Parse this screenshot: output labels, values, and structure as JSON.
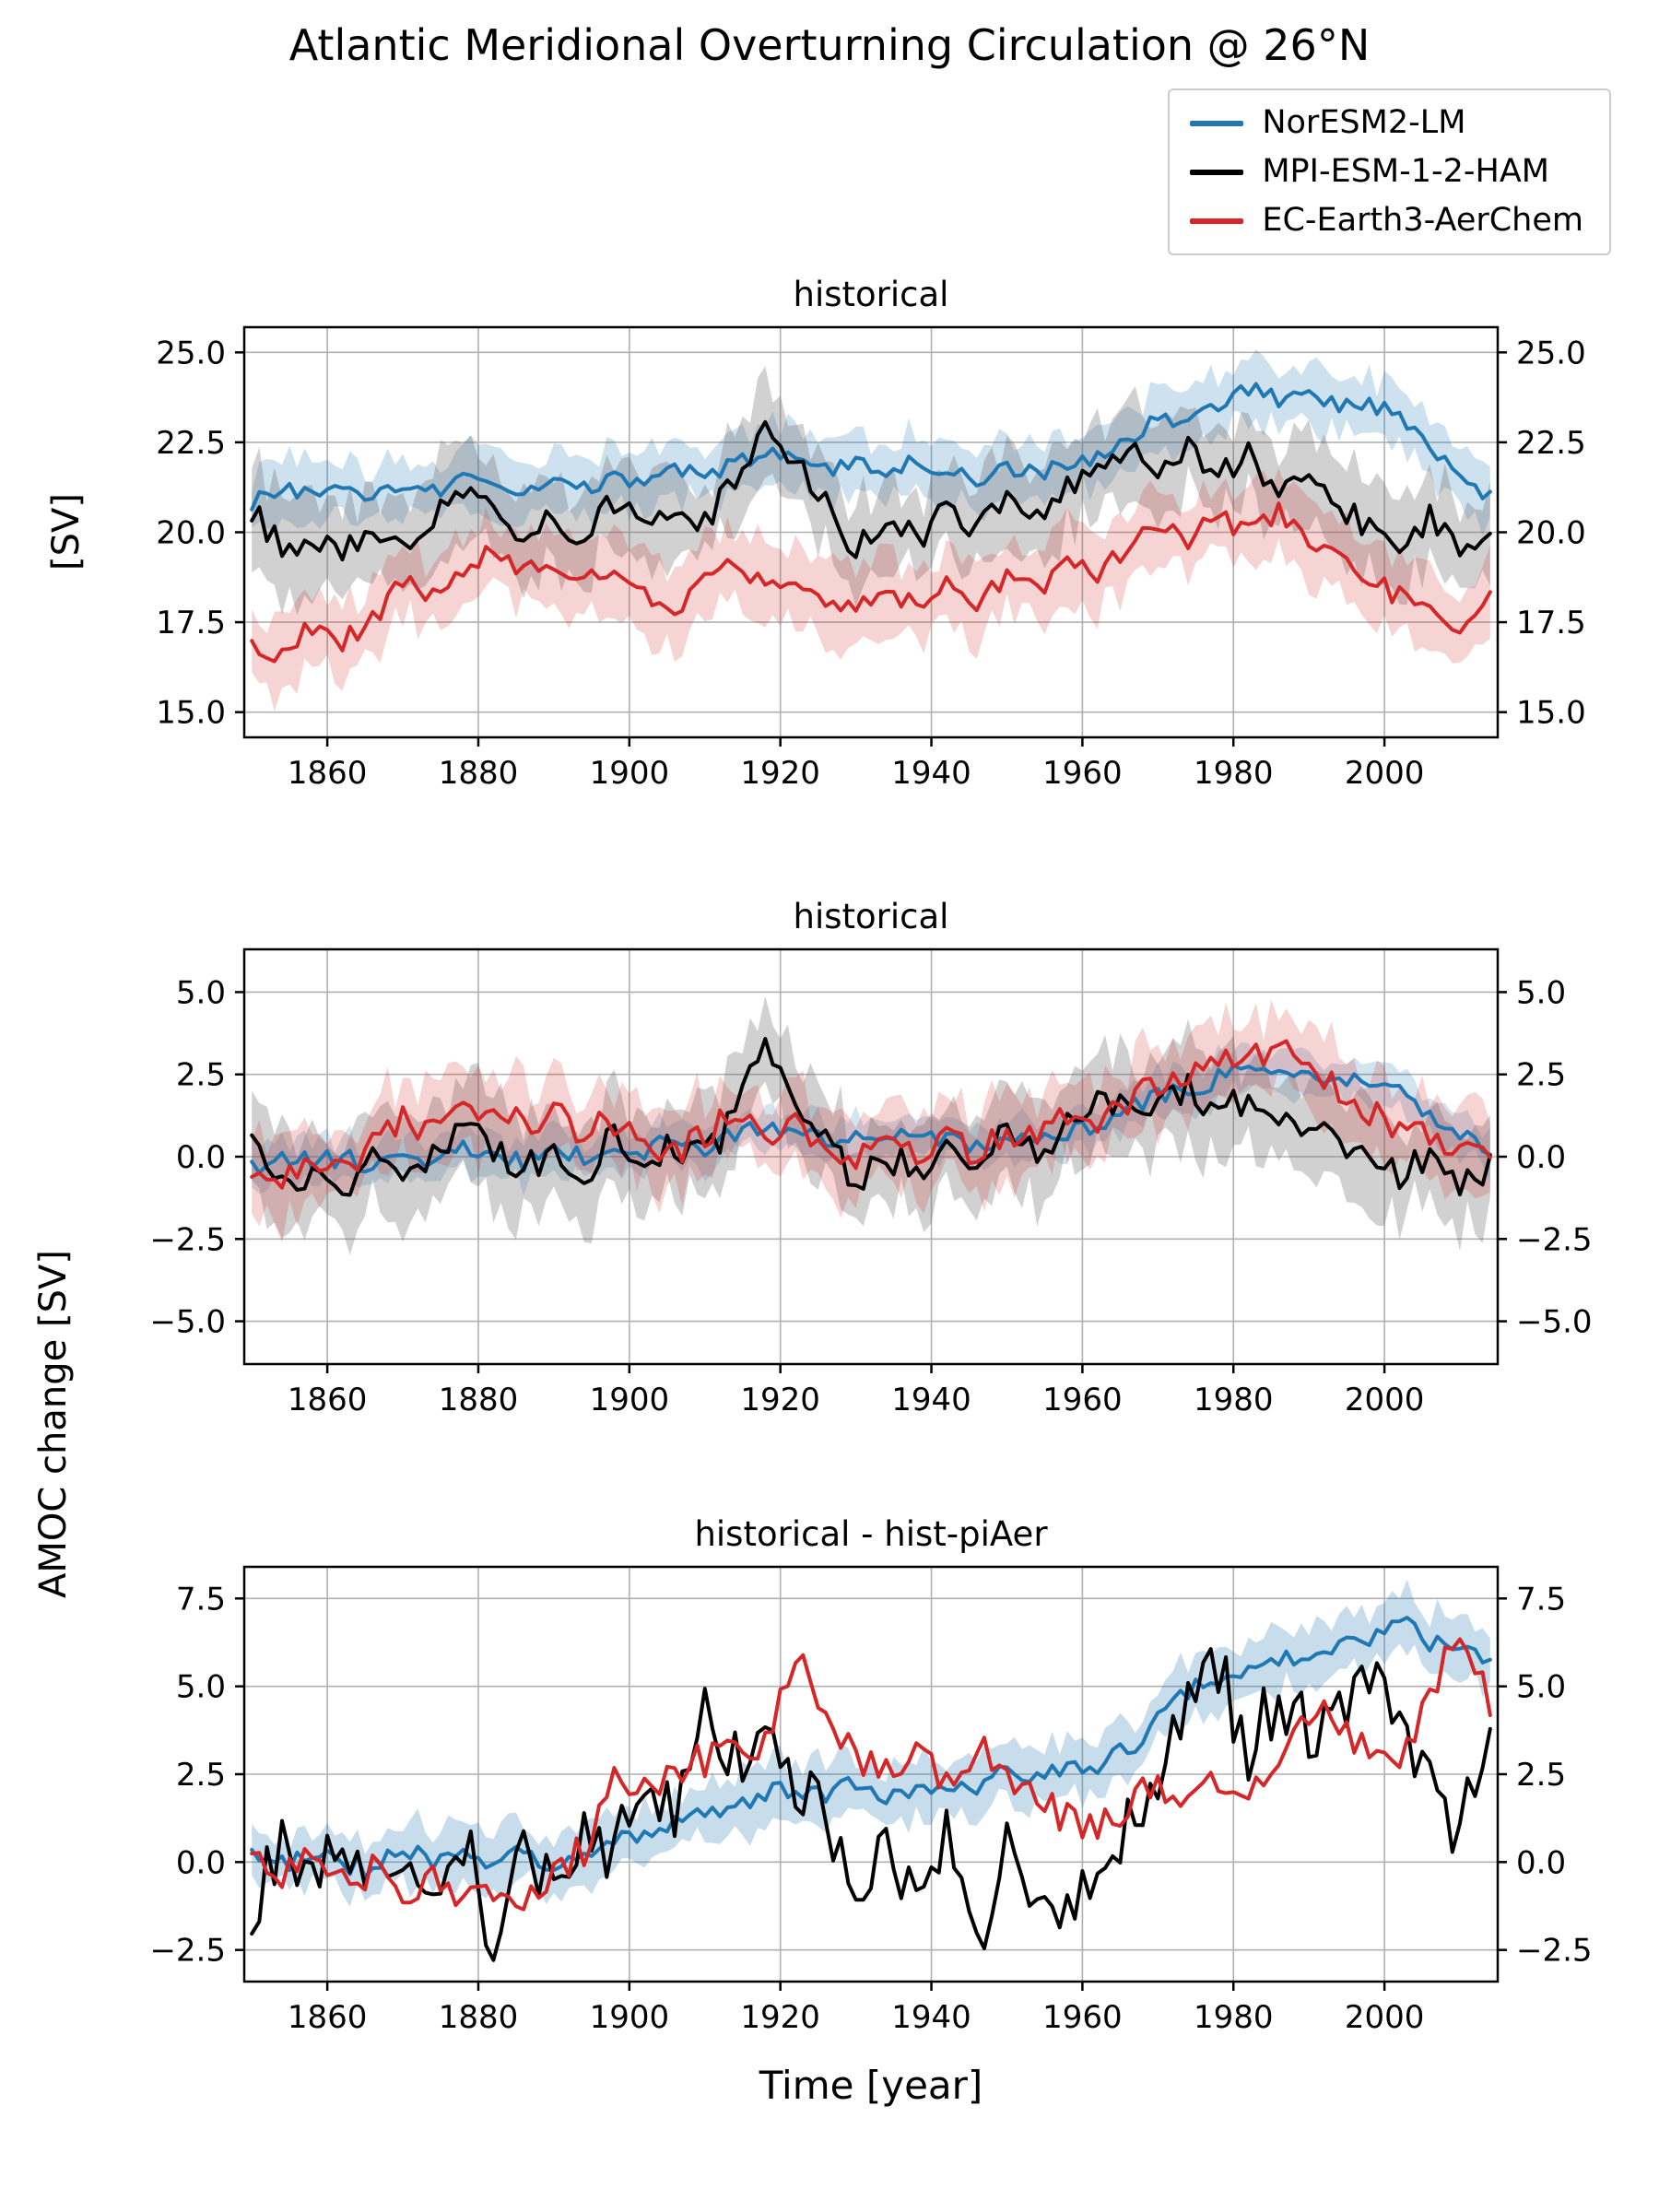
{
  "figure": {
    "title": "Atlantic Meridional Overturning Circulation @ 26°N",
    "xlabel": "Time [year]",
    "ylabel_top": "[SV]",
    "ylabel_bottom": "AMOC change [SV]"
  },
  "legend": {
    "items": [
      {
        "label": "NorESM2-LM",
        "color": "#1f77b4"
      },
      {
        "label": "MPI-ESM-1-2-HAM",
        "color": "#000000"
      },
      {
        "label": "EC-Earth3-AerChem",
        "color": "#d62728"
      }
    ]
  },
  "chart_data": {
    "type": "line",
    "x_years": [
      1850,
      1854,
      1858,
      1862,
      1866,
      1870,
      1874,
      1878,
      1882,
      1886,
      1890,
      1894,
      1898,
      1902,
      1906,
      1910,
      1914,
      1918,
      1922,
      1926,
      1930,
      1934,
      1938,
      1942,
      1946,
      1950,
      1954,
      1958,
      1962,
      1966,
      1970,
      1974,
      1978,
      1982,
      1986,
      1990,
      1994,
      1998,
      2002,
      2006,
      2010,
      2014
    ],
    "xlim": [
      1849,
      2015
    ],
    "xticks": [
      1860,
      1880,
      1900,
      1920,
      1940,
      1960,
      1980,
      2000
    ],
    "grid": true,
    "panels": [
      {
        "title": "historical",
        "ylabel": "[SV]",
        "ylim": [
          14.3,
          25.7
        ],
        "yticks": [
          15.0,
          17.5,
          20.0,
          22.5,
          25.0
        ],
        "series": [
          {
            "name": "NorESM2-LM",
            "color": "#1f77b4",
            "band_color": "#1f77b4",
            "band_halfwidth": 0.8,
            "band_alpha": 0.22,
            "variability": 0.22,
            "values": [
              20.8,
              21.3,
              21.0,
              21.2,
              20.9,
              21.4,
              21.1,
              21.5,
              21.3,
              21.0,
              21.4,
              21.2,
              21.5,
              21.3,
              21.8,
              21.5,
              21.9,
              22.2,
              22.0,
              21.7,
              21.9,
              21.6,
              22.0,
              21.7,
              21.5,
              21.8,
              21.6,
              21.9,
              22.1,
              22.6,
              23.2,
              23.0,
              23.6,
              24.0,
              23.7,
              23.9,
              23.5,
              23.6,
              23.2,
              22.4,
              21.6,
              21.0
            ]
          },
          {
            "name": "MPI-ESM-1-2-HAM",
            "color": "#000000",
            "band_color": "#666666",
            "band_halfwidth": 1.2,
            "band_alpha": 0.3,
            "variability": 0.38,
            "values": [
              20.6,
              19.6,
              19.9,
              19.3,
              20.2,
              19.6,
              20.4,
              21.3,
              20.5,
              20.0,
              20.3,
              19.8,
              20.9,
              20.2,
              20.6,
              20.3,
              21.5,
              22.9,
              21.9,
              20.9,
              19.5,
              20.4,
              19.8,
              20.6,
              20.1,
              21.0,
              20.4,
              21.2,
              21.9,
              22.3,
              21.7,
              22.4,
              21.6,
              22.1,
              21.2,
              21.5,
              20.6,
              20.2,
              19.8,
              20.4,
              19.6,
              19.9
            ]
          },
          {
            "name": "EC-Earth3-AerChem",
            "color": "#d62728",
            "band_color": "#d62728",
            "band_halfwidth": 1.0,
            "band_alpha": 0.2,
            "variability": 0.3,
            "values": [
              16.8,
              16.6,
              17.4,
              17.0,
              17.6,
              18.6,
              18.3,
              19.0,
              19.4,
              18.8,
              19.2,
              18.6,
              19.0,
              18.2,
              17.9,
              18.6,
              19.2,
              18.4,
              18.8,
              18.1,
              17.8,
              18.4,
              18.0,
              18.6,
              17.9,
              18.8,
              18.3,
              19.2,
              18.9,
              19.6,
              20.2,
              19.8,
              20.4,
              20.0,
              20.6,
              19.9,
              19.3,
              18.7,
              18.2,
              17.8,
              17.4,
              18.3
            ]
          }
        ]
      },
      {
        "title": "historical",
        "ylabel": "AMOC change [SV]",
        "ylim": [
          -6.3,
          6.3
        ],
        "yticks": [
          -5.0,
          -2.5,
          0.0,
          2.5,
          5.0
        ],
        "series": [
          {
            "name": "NorESM2-LM",
            "color": "#1f77b4",
            "band_color": "#1f77b4",
            "band_halfwidth": 0.6,
            "band_alpha": 0.2,
            "variability": 0.28,
            "values": [
              -0.4,
              0.1,
              -0.2,
              0.0,
              -0.3,
              0.2,
              -0.1,
              0.3,
              0.1,
              -0.2,
              0.2,
              0.0,
              0.3,
              0.1,
              0.6,
              0.3,
              0.7,
              1.0,
              0.8,
              0.5,
              0.7,
              0.4,
              0.8,
              0.5,
              0.3,
              0.6,
              0.4,
              0.7,
              0.9,
              1.4,
              2.0,
              1.8,
              2.4,
              2.8,
              2.5,
              2.7,
              2.3,
              2.4,
              2.0,
              1.2,
              0.6,
              0.3
            ]
          },
          {
            "name": "MPI-ESM-1-2-HAM",
            "color": "#000000",
            "band_color": "#666666",
            "band_halfwidth": 1.4,
            "band_alpha": 0.3,
            "variability": 0.5,
            "values": [
              0.3,
              -0.7,
              -0.4,
              -1.0,
              -0.1,
              -0.7,
              0.1,
              1.0,
              0.2,
              -0.3,
              0.0,
              -0.5,
              0.6,
              -0.1,
              0.3,
              0.0,
              1.2,
              3.4,
              1.6,
              0.6,
              -0.8,
              0.1,
              -0.5,
              0.3,
              -0.2,
              0.7,
              0.1,
              0.9,
              1.6,
              2.0,
              1.4,
              2.1,
              1.3,
              1.8,
              0.9,
              1.2,
              0.3,
              -0.1,
              -0.5,
              0.1,
              -0.7,
              -0.4
            ]
          },
          {
            "name": "EC-Earth3-AerChem",
            "color": "#d62728",
            "band_color": "#d62728",
            "band_halfwidth": 1.2,
            "band_alpha": 0.2,
            "variability": 0.45,
            "values": [
              -0.5,
              -0.7,
              0.1,
              -0.3,
              0.3,
              1.1,
              0.8,
              1.3,
              1.5,
              0.9,
              1.3,
              0.7,
              1.1,
              0.3,
              0.0,
              0.7,
              1.3,
              0.5,
              0.9,
              0.2,
              -0.1,
              0.5,
              0.1,
              0.7,
              0.0,
              0.9,
              0.4,
              1.3,
              1.0,
              1.7,
              2.3,
              2.5,
              3.2,
              2.9,
              3.4,
              2.6,
              2.0,
              1.4,
              0.9,
              0.5,
              0.1,
              0.4
            ]
          }
        ]
      },
      {
        "title": "historical - hist-piAer",
        "ylabel": "AMOC change [SV]",
        "ylim": [
          -3.4,
          8.4
        ],
        "yticks": [
          -2.5,
          0.0,
          2.5,
          5.0,
          7.5
        ],
        "series": [
          {
            "name": "NorESM2-LM",
            "color": "#1f77b4",
            "band_color": "#1f77b4",
            "band_halfwidth": 0.8,
            "band_alpha": 0.25,
            "variability": 0.3,
            "values": [
              0.2,
              -0.1,
              0.3,
              0.0,
              -0.2,
              0.4,
              0.1,
              0.3,
              0.0,
              0.2,
              -0.1,
              0.3,
              0.5,
              0.8,
              1.0,
              1.3,
              1.6,
              1.9,
              2.1,
              2.0,
              2.2,
              1.9,
              2.1,
              2.3,
              2.2,
              2.5,
              2.3,
              2.6,
              2.8,
              3.2,
              4.0,
              4.8,
              5.3,
              5.6,
              5.8,
              6.0,
              6.2,
              6.4,
              6.9,
              6.3,
              6.1,
              5.6
            ]
          },
          {
            "name": "MPI-ESM-1-2-HAM",
            "color": "#000000",
            "band_color": "#666666",
            "band_halfwidth": 0,
            "band_alpha": 0,
            "variability": 0.95,
            "values": [
              -1.3,
              0.6,
              -0.8,
              0.9,
              -0.5,
              0.4,
              -1.1,
              0.7,
              -2.3,
              0.3,
              -0.9,
              1.2,
              0.2,
              2.4,
              1.6,
              4.9,
              2.8,
              3.1,
              2.2,
              1.4,
              -1.4,
              0.3,
              -0.8,
              1.0,
              -2.4,
              0.4,
              -1.2,
              -1.6,
              0.2,
              1.1,
              2.6,
              4.4,
              5.5,
              3.2,
              4.8,
              3.6,
              4.2,
              5.4,
              3.8,
              2.2,
              0.8,
              3.5
            ]
          },
          {
            "name": "EC-Earth3-AerChem",
            "color": "#d62728",
            "band_color": "#d62728",
            "band_halfwidth": 0,
            "band_alpha": 0,
            "variability": 0.5,
            "values": [
              0.5,
              -0.3,
              0.2,
              -0.6,
              -0.2,
              -0.8,
              -0.4,
              -1.2,
              -0.6,
              -1.0,
              -0.3,
              0.4,
              2.4,
              2.2,
              2.6,
              2.9,
              3.2,
              3.4,
              5.9,
              3.9,
              3.0,
              2.8,
              3.2,
              2.4,
              3.3,
              2.5,
              1.8,
              1.2,
              0.9,
              1.6,
              2.2,
              1.7,
              2.4,
              2.0,
              3.0,
              4.4,
              3.8,
              3.1,
              2.8,
              4.9,
              6.3,
              4.6
            ]
          }
        ]
      }
    ]
  }
}
